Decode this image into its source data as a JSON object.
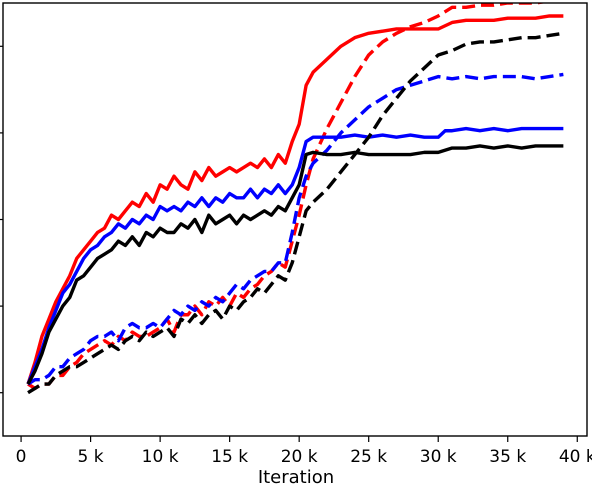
{
  "chart_data": {
    "type": "line",
    "title": "",
    "xlabel": "Iteration",
    "ylabel": "",
    "xlim": [
      -1300,
      40700
    ],
    "ylim": [
      0,
      1
    ],
    "x_ticks": [
      0,
      5000,
      10000,
      15000,
      20000,
      25000,
      30000,
      35000,
      40000
    ],
    "x_tick_labels": [
      "0",
      "5 k",
      "10 k",
      "15 k",
      "20 k",
      "25 k",
      "30 k",
      "35 k",
      "40 k"
    ],
    "y_ticks": [
      0.1,
      0.3,
      0.5,
      0.7,
      0.9
    ],
    "y_tick_labels": [],
    "grid": false,
    "legend": false,
    "series": [
      {
        "color": "#ff0000",
        "style": "solid",
        "x": [
          500,
          1000,
          1500,
          2000,
          2500,
          3000,
          3500,
          4000,
          4500,
          5000,
          5500,
          6000,
          6500,
          7000,
          7500,
          8000,
          8500,
          9000,
          9500,
          10000,
          10500,
          11000,
          11500,
          12000,
          12500,
          13000,
          13500,
          14000,
          14500,
          15000,
          15500,
          16000,
          16500,
          17000,
          17500,
          18000,
          18500,
          19000,
          19500,
          20000,
          20500,
          21000,
          22000,
          23000,
          24000,
          25000,
          26000,
          27000,
          28000,
          29000,
          30000,
          31000,
          32000,
          33000,
          34000,
          35000,
          36000,
          37000,
          38000,
          39000
        ],
        "y": [
          0.12,
          0.17,
          0.23,
          0.27,
          0.31,
          0.34,
          0.37,
          0.41,
          0.43,
          0.45,
          0.47,
          0.48,
          0.51,
          0.5,
          0.52,
          0.54,
          0.53,
          0.56,
          0.54,
          0.58,
          0.57,
          0.6,
          0.58,
          0.57,
          0.61,
          0.59,
          0.62,
          0.6,
          0.61,
          0.62,
          0.61,
          0.62,
          0.63,
          0.62,
          0.64,
          0.62,
          0.65,
          0.63,
          0.68,
          0.72,
          0.81,
          0.84,
          0.87,
          0.9,
          0.92,
          0.93,
          0.935,
          0.94,
          0.94,
          0.94,
          0.94,
          0.955,
          0.96,
          0.96,
          0.96,
          0.965,
          0.965,
          0.965,
          0.97,
          0.97
        ]
      },
      {
        "color": "#ff0000",
        "style": "dashed",
        "x": [
          500,
          1000,
          1500,
          2000,
          2500,
          3000,
          3500,
          4000,
          4500,
          5000,
          5500,
          6000,
          6500,
          7000,
          7500,
          8000,
          8500,
          9000,
          9500,
          10000,
          10500,
          11000,
          11500,
          12000,
          12500,
          13000,
          13500,
          14000,
          14500,
          15000,
          15500,
          16000,
          16500,
          17000,
          17500,
          18000,
          18500,
          19000,
          19500,
          20000,
          20500,
          21000,
          22000,
          23000,
          24000,
          25000,
          26000,
          27000,
          28000,
          29000,
          30000,
          31000,
          32000,
          33000,
          34000,
          35000,
          36000,
          37000,
          38000,
          39000
        ],
        "y": [
          0.12,
          0.11,
          0.12,
          0.12,
          0.14,
          0.14,
          0.16,
          0.17,
          0.19,
          0.2,
          0.21,
          0.22,
          0.21,
          0.23,
          0.22,
          0.24,
          0.23,
          0.23,
          0.24,
          0.25,
          0.27,
          0.24,
          0.28,
          0.28,
          0.3,
          0.28,
          0.31,
          0.3,
          0.32,
          0.3,
          0.33,
          0.32,
          0.34,
          0.35,
          0.37,
          0.38,
          0.4,
          0.39,
          0.45,
          0.51,
          0.58,
          0.64,
          0.71,
          0.77,
          0.83,
          0.88,
          0.91,
          0.93,
          0.945,
          0.955,
          0.97,
          0.99,
          0.99,
          0.995,
          0.995,
          1.0,
          1.0,
          1.0,
          1.005,
          1.005
        ]
      },
      {
        "color": "#0000ff",
        "style": "solid",
        "x": [
          500,
          1000,
          1500,
          2000,
          2500,
          3000,
          3500,
          4000,
          4500,
          5000,
          5500,
          6000,
          6500,
          7000,
          7500,
          8000,
          8500,
          9000,
          9500,
          10000,
          10500,
          11000,
          11500,
          12000,
          12500,
          13000,
          13500,
          14000,
          14500,
          15000,
          15500,
          16000,
          16500,
          17000,
          17500,
          18000,
          18500,
          19000,
          19500,
          20000,
          20500,
          21000,
          22000,
          23000,
          24000,
          25000,
          26000,
          27000,
          28000,
          29000,
          30000,
          30500,
          31000,
          32000,
          33000,
          34000,
          35000,
          36000,
          37000,
          38000,
          39000
        ],
        "y": [
          0.12,
          0.16,
          0.2,
          0.25,
          0.29,
          0.33,
          0.35,
          0.38,
          0.41,
          0.43,
          0.44,
          0.46,
          0.47,
          0.49,
          0.48,
          0.5,
          0.49,
          0.51,
          0.5,
          0.53,
          0.52,
          0.53,
          0.52,
          0.54,
          0.53,
          0.55,
          0.53,
          0.55,
          0.54,
          0.56,
          0.55,
          0.55,
          0.57,
          0.55,
          0.57,
          0.56,
          0.58,
          0.56,
          0.58,
          0.62,
          0.68,
          0.69,
          0.69,
          0.69,
          0.695,
          0.69,
          0.695,
          0.69,
          0.695,
          0.69,
          0.69,
          0.705,
          0.705,
          0.71,
          0.705,
          0.71,
          0.705,
          0.71,
          0.71,
          0.71,
          0.71
        ]
      },
      {
        "color": "#0000ff",
        "style": "dashed",
        "x": [
          500,
          1000,
          1500,
          2000,
          2500,
          3000,
          3500,
          4000,
          4500,
          5000,
          5500,
          6000,
          6500,
          7000,
          7500,
          8000,
          8500,
          9000,
          9500,
          10000,
          10500,
          11000,
          11500,
          12000,
          12500,
          13000,
          13500,
          14000,
          14500,
          15000,
          15500,
          16000,
          16500,
          17000,
          17500,
          18000,
          18500,
          19000,
          19500,
          20000,
          20500,
          21000,
          22000,
          23000,
          24000,
          25000,
          26000,
          27000,
          28000,
          29000,
          30000,
          31000,
          32000,
          33000,
          34000,
          35000,
          36000,
          37000,
          38000,
          39000
        ],
        "y": [
          0.12,
          0.13,
          0.13,
          0.14,
          0.16,
          0.16,
          0.18,
          0.19,
          0.2,
          0.22,
          0.23,
          0.23,
          0.24,
          0.22,
          0.25,
          0.26,
          0.25,
          0.25,
          0.26,
          0.25,
          0.27,
          0.29,
          0.28,
          0.3,
          0.29,
          0.31,
          0.3,
          0.32,
          0.31,
          0.33,
          0.35,
          0.34,
          0.36,
          0.37,
          0.38,
          0.38,
          0.4,
          0.4,
          0.47,
          0.55,
          0.6,
          0.63,
          0.66,
          0.7,
          0.73,
          0.76,
          0.78,
          0.8,
          0.81,
          0.82,
          0.83,
          0.825,
          0.83,
          0.825,
          0.83,
          0.83,
          0.83,
          0.825,
          0.83,
          0.835
        ]
      },
      {
        "color": "#000000",
        "style": "solid",
        "x": [
          500,
          1000,
          1500,
          2000,
          2500,
          3000,
          3500,
          4000,
          4500,
          5000,
          5500,
          6000,
          6500,
          7000,
          7500,
          8000,
          8500,
          9000,
          9500,
          10000,
          10500,
          11000,
          11500,
          12000,
          12500,
          13000,
          13500,
          14000,
          14500,
          15000,
          15500,
          16000,
          16500,
          17000,
          17500,
          18000,
          18500,
          19000,
          19500,
          20000,
          20500,
          21000,
          22000,
          23000,
          24000,
          25000,
          26000,
          27000,
          28000,
          29000,
          30000,
          31000,
          32000,
          33000,
          34000,
          35000,
          36000,
          37000,
          38000,
          39000
        ],
        "y": [
          0.12,
          0.15,
          0.19,
          0.24,
          0.27,
          0.3,
          0.32,
          0.36,
          0.37,
          0.39,
          0.41,
          0.42,
          0.43,
          0.45,
          0.44,
          0.46,
          0.44,
          0.47,
          0.46,
          0.48,
          0.47,
          0.47,
          0.49,
          0.48,
          0.5,
          0.47,
          0.51,
          0.49,
          0.5,
          0.51,
          0.49,
          0.51,
          0.5,
          0.51,
          0.52,
          0.51,
          0.53,
          0.52,
          0.55,
          0.58,
          0.65,
          0.655,
          0.65,
          0.65,
          0.655,
          0.65,
          0.65,
          0.65,
          0.65,
          0.655,
          0.655,
          0.665,
          0.665,
          0.67,
          0.665,
          0.67,
          0.665,
          0.67,
          0.67,
          0.67
        ]
      },
      {
        "color": "#000000",
        "style": "dashed",
        "x": [
          500,
          1000,
          1500,
          2000,
          2500,
          3000,
          3500,
          4000,
          4500,
          5000,
          5500,
          6000,
          6500,
          7000,
          7500,
          8000,
          8500,
          9000,
          9500,
          10000,
          10500,
          11000,
          11500,
          12000,
          12500,
          13000,
          13500,
          14000,
          14500,
          15000,
          15500,
          16000,
          16500,
          17000,
          17500,
          18000,
          18500,
          19000,
          19500,
          20000,
          20500,
          21000,
          22000,
          23000,
          24000,
          25000,
          26000,
          27000,
          28000,
          29000,
          30000,
          31000,
          32000,
          33000,
          34000,
          35000,
          36000,
          37000,
          38000,
          39000
        ],
        "y": [
          0.1,
          0.11,
          0.12,
          0.12,
          0.14,
          0.15,
          0.16,
          0.16,
          0.17,
          0.18,
          0.19,
          0.2,
          0.21,
          0.2,
          0.22,
          0.23,
          0.22,
          0.24,
          0.23,
          0.24,
          0.25,
          0.23,
          0.27,
          0.26,
          0.28,
          0.26,
          0.28,
          0.29,
          0.27,
          0.3,
          0.29,
          0.31,
          0.32,
          0.34,
          0.33,
          0.35,
          0.37,
          0.36,
          0.4,
          0.46,
          0.52,
          0.54,
          0.57,
          0.61,
          0.65,
          0.69,
          0.74,
          0.78,
          0.82,
          0.85,
          0.88,
          0.89,
          0.905,
          0.91,
          0.91,
          0.915,
          0.92,
          0.92,
          0.925,
          0.93
        ]
      }
    ]
  }
}
